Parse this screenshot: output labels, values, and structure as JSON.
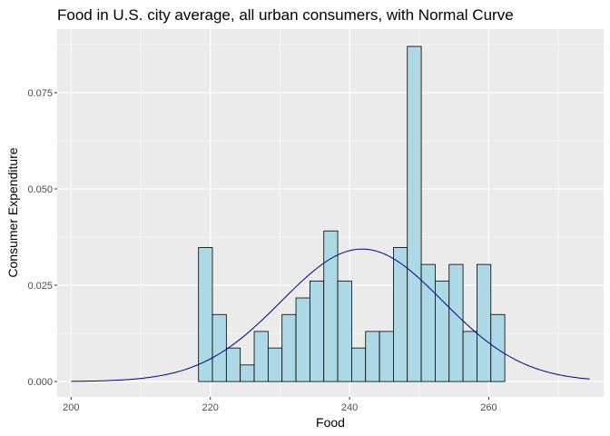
{
  "chart_data": {
    "type": "bar",
    "title": "Food in U.S. city average, all urban consumers, with Normal Curve",
    "xlabel": "Food",
    "ylabel": "Consumer Expenditure",
    "xlim": [
      198,
      276.5
    ],
    "ylim": [
      -0.004,
      0.0915
    ],
    "x_ticks": [
      200,
      220,
      240,
      260
    ],
    "x_tick_labels": [
      "200",
      "220",
      "240",
      "260"
    ],
    "y_ticks": [
      0,
      0.025,
      0.05,
      0.075
    ],
    "y_tick_labels": [
      "0.000",
      "0.025",
      "0.050",
      "0.075"
    ],
    "grid": true,
    "bins": {
      "start": 218.3,
      "width": 2.0,
      "values": [
        0.0348,
        0.0174,
        0.0087,
        0.0043,
        0.013,
        0.0087,
        0.0174,
        0.0217,
        0.0261,
        0.0391,
        0.0261,
        0.0087,
        0.013,
        0.013,
        0.0348,
        0.087,
        0.0304,
        0.0261,
        0.0304,
        0.013,
        0.0304,
        0.0174
      ]
    },
    "normal_curve": {
      "mean": 241.8,
      "sd": 11.6,
      "x_range": [
        200,
        274.5
      ],
      "color": "#00008b"
    },
    "colors": {
      "panel": "#ebebeb",
      "grid": "#ffffff",
      "bar_fill": "#add8e6",
      "bar_stroke": "#000000"
    }
  }
}
